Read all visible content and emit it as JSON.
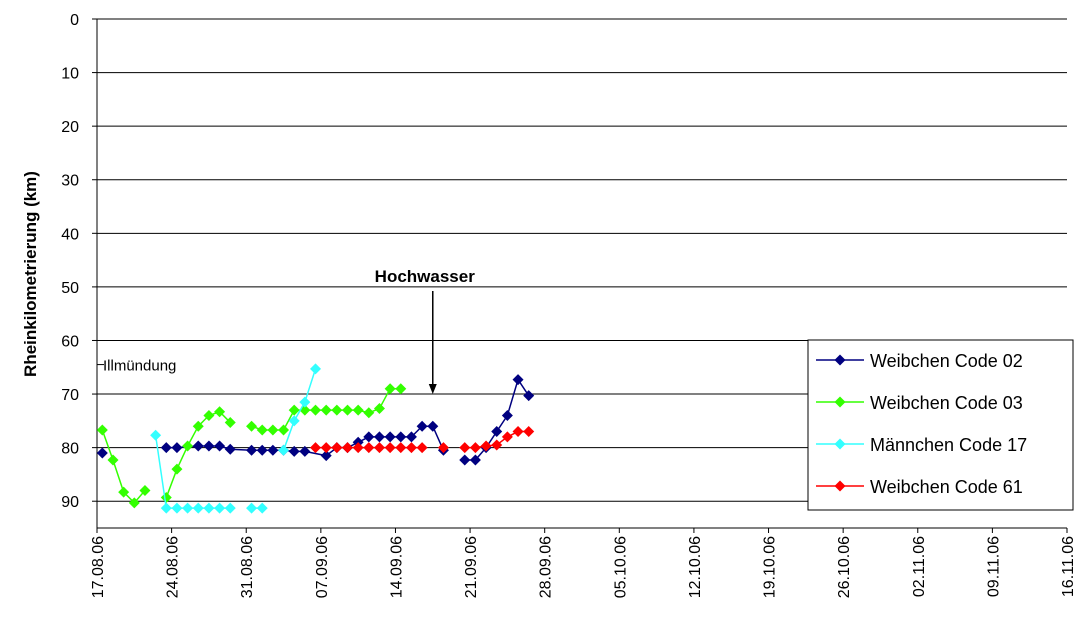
{
  "chart_data": {
    "type": "line",
    "ylabel": "Rheinkilometrierung (km)",
    "ylim": [
      0,
      95
    ],
    "yticks": [
      0,
      10,
      20,
      30,
      40,
      50,
      60,
      70,
      80,
      90
    ],
    "y_inverted": true,
    "xlim": [
      "17.08.06",
      "16.11.06"
    ],
    "xticks": [
      "17.08.06",
      "24.08.06",
      "31.08.06",
      "07.09.06",
      "14.09.06",
      "21.09.06",
      "28.09.06",
      "05.10.06",
      "12.10.06",
      "19.10.06",
      "26.10.06",
      "02.11.06",
      "09.11.06",
      "16.11.06"
    ],
    "grid": true,
    "legend": "right",
    "annotations": [
      {
        "text": "Hochwasser",
        "x": "17.09.06"
      },
      {
        "text": "Illmündung",
        "y": 64.5
      }
    ],
    "series": [
      {
        "name": "Weibchen Code 02",
        "color": "#000080",
        "x": [
          "17.08.06",
          "18.08.06",
          "23.08.06",
          "24.08.06",
          "26.08.06",
          "27.08.06",
          "28.08.06",
          "29.08.06",
          "31.08.06",
          "01.09.06",
          "02.09.06",
          "03.09.06",
          "04.09.06",
          "05.09.06",
          "07.09.06",
          "08.09.06",
          "09.09.06",
          "10.09.06",
          "11.09.06",
          "12.09.06",
          "13.09.06",
          "14.09.06",
          "15.09.06",
          "16.09.06",
          "17.09.06",
          "18.09.06",
          "19.09.06",
          "20.09.06",
          "21.09.06",
          "22.09.06",
          "23.09.06",
          "24.09.06",
          "25.09.06",
          "26.09.06"
        ],
        "values": [
          81,
          null,
          80,
          80,
          79.7,
          79.7,
          79.7,
          80.3,
          80.5,
          80.5,
          80.5,
          80.5,
          80.7,
          80.7,
          81.5,
          80,
          80,
          79,
          78,
          78,
          78,
          78,
          78,
          76,
          76,
          80.5,
          null,
          82.3,
          82.3,
          80,
          77,
          74,
          67.3,
          70.3
        ]
      },
      {
        "name": "Weibchen Code 03",
        "color": "#33ff00",
        "x": [
          "17.08.06",
          "18.08.06",
          "19.08.06",
          "20.08.06",
          "21.08.06",
          "22.08.06",
          "23.08.06",
          "24.08.06",
          "25.08.06",
          "26.08.06",
          "27.08.06",
          "28.08.06",
          "29.08.06",
          "30.08.06",
          "31.08.06",
          "01.09.06",
          "02.09.06",
          "03.09.06",
          "04.09.06",
          "05.09.06",
          "06.09.06",
          "07.09.06",
          "08.09.06",
          "09.09.06",
          "10.09.06",
          "11.09.06",
          "12.09.06",
          "13.09.06",
          "14.09.06"
        ],
        "values": [
          76.7,
          82.3,
          88.3,
          90.3,
          88,
          null,
          89.3,
          84,
          79.7,
          76,
          74,
          73.3,
          75.3,
          null,
          76,
          76.7,
          76.7,
          76.7,
          73,
          73,
          73,
          73,
          73,
          73,
          73,
          73.5,
          72.7,
          69,
          69
        ]
      },
      {
        "name": "Männchen Code 17",
        "color": "#33ffff",
        "x": [
          "22.08.06",
          "23.08.06",
          "24.08.06",
          "25.08.06",
          "26.08.06",
          "27.08.06",
          "28.08.06",
          "29.08.06",
          "30.08.06",
          "31.08.06",
          "01.09.06",
          "02.09.06",
          "03.09.06",
          "04.09.06",
          "05.09.06",
          "06.09.06"
        ],
        "values": [
          77.7,
          91.3,
          91.3,
          91.3,
          91.3,
          91.3,
          91.3,
          91.3,
          null,
          91.3,
          91.3,
          null,
          80.5,
          75,
          71.5,
          65.3
        ]
      },
      {
        "name": "Weibchen Code 61",
        "color": "#ff0000",
        "x": [
          "06.09.06",
          "07.09.06",
          "08.09.06",
          "09.09.06",
          "10.09.06",
          "11.09.06",
          "12.09.06",
          "13.09.06",
          "14.09.06",
          "15.09.06",
          "16.09.06",
          "17.09.06",
          "18.09.06",
          "19.09.06",
          "20.09.06",
          "21.09.06",
          "22.09.06",
          "23.09.06",
          "24.09.06",
          "25.09.06",
          "26.09.06"
        ],
        "values": [
          80,
          80,
          80,
          80,
          80,
          80,
          80,
          80,
          80,
          80,
          80,
          null,
          80,
          null,
          80,
          80,
          79.7,
          79.5,
          78,
          77,
          77
        ]
      }
    ]
  }
}
